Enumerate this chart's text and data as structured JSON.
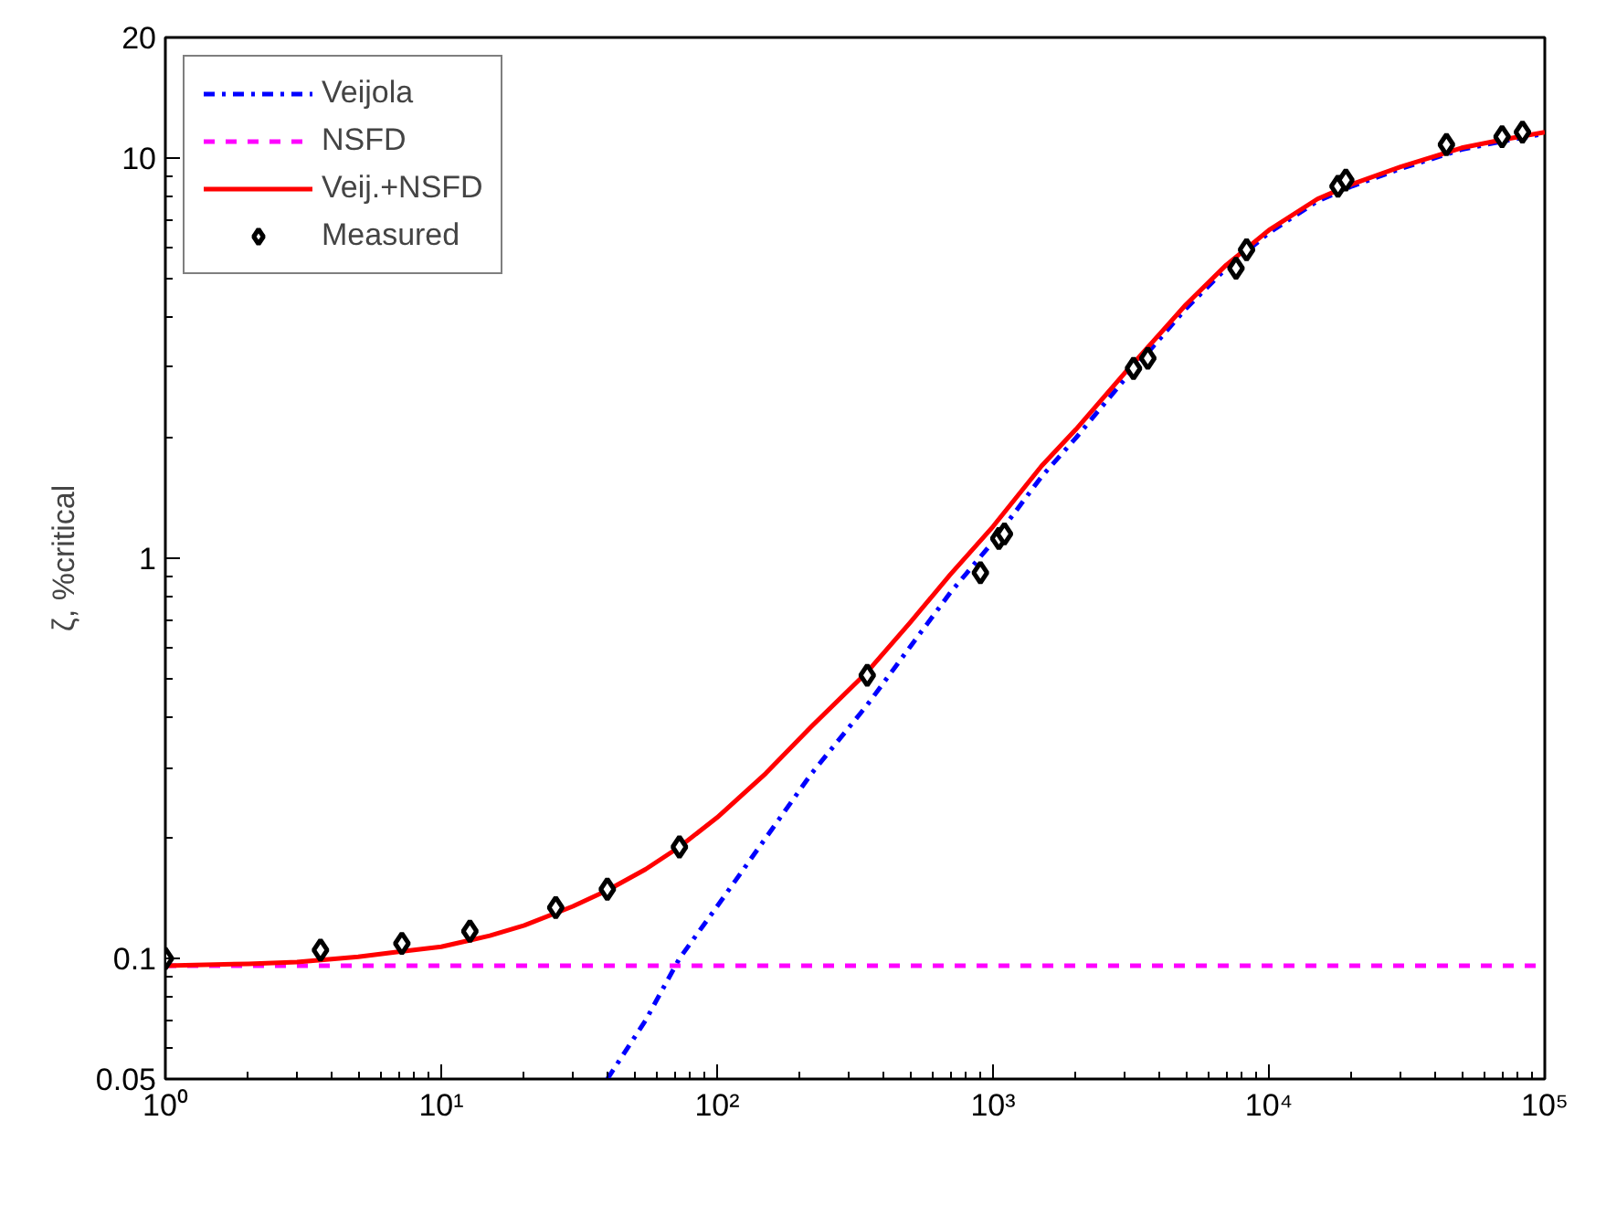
{
  "chart_data": {
    "type": "line",
    "ylabel": "ζ, %critical",
    "log": "xy",
    "grid": false,
    "legend": "top left",
    "xlim": [
      1,
      100000
    ],
    "xticks": [
      {
        "value": 1,
        "label": "10⁰"
      },
      {
        "value": 10,
        "label": "10¹"
      },
      {
        "value": 100,
        "label": "10²"
      },
      {
        "value": 1000,
        "label": "10³"
      },
      {
        "value": 10000,
        "label": "10⁴"
      },
      {
        "value": 100000,
        "label": "10⁵"
      }
    ],
    "ylim": [
      0.05,
      20
    ],
    "yticks": [
      0.05,
      0.1,
      1,
      10,
      20
    ],
    "series": [
      {
        "name": "Veijola",
        "color": "#0000ff",
        "line_style": "dashdot",
        "marker": "none",
        "x": [
          40,
          55,
          73,
          100,
          150,
          220,
          350,
          500,
          700,
          1000,
          1500,
          2000,
          3000,
          5000,
          7000,
          10000,
          15000,
          20000,
          30000,
          50000,
          70000,
          100000
        ],
        "values": [
          0.05,
          0.07,
          0.1,
          0.135,
          0.2,
          0.29,
          0.43,
          0.6,
          0.82,
          1.1,
          1.6,
          2.0,
          2.8,
          4.2,
          5.3,
          6.5,
          7.8,
          8.5,
          9.4,
          10.5,
          11.0,
          11.5
        ]
      },
      {
        "name": "NSFD",
        "color": "#ff00ff",
        "line_style": "dashed",
        "marker": "none",
        "x": [
          1,
          100000
        ],
        "values": [
          0.096,
          0.096
        ]
      },
      {
        "name": "Veij.+NSFD",
        "color": "#ff0000",
        "line_style": "solid",
        "marker": "none",
        "x": [
          1,
          2,
          3,
          5,
          7,
          10,
          15,
          20,
          30,
          40,
          55,
          73,
          100,
          150,
          220,
          350,
          500,
          700,
          1000,
          1500,
          2000,
          3000,
          5000,
          7000,
          10000,
          15000,
          20000,
          30000,
          50000,
          70000,
          100000
        ],
        "values": [
          0.096,
          0.097,
          0.098,
          0.101,
          0.104,
          0.107,
          0.114,
          0.121,
          0.135,
          0.148,
          0.167,
          0.19,
          0.225,
          0.29,
          0.38,
          0.52,
          0.69,
          0.91,
          1.2,
          1.7,
          2.1,
          2.9,
          4.3,
          5.4,
          6.6,
          7.9,
          8.6,
          9.5,
          10.6,
          11.1,
          11.6
        ]
      },
      {
        "name": "Measured",
        "type": "scatter",
        "color": "#000000",
        "marker": "diamond",
        "x": [
          1,
          3.65,
          7.2,
          12.7,
          26,
          40,
          73,
          350,
          900,
          1050,
          1100,
          3230,
          3640,
          7600,
          8300,
          17800,
          19000,
          44000,
          70000,
          83000
        ],
        "values": [
          0.1,
          0.105,
          0.109,
          0.117,
          0.134,
          0.149,
          0.19,
          0.51,
          0.92,
          1.12,
          1.15,
          2.98,
          3.16,
          5.3,
          5.9,
          8.5,
          8.8,
          10.8,
          11.3,
          11.6
        ]
      }
    ]
  }
}
